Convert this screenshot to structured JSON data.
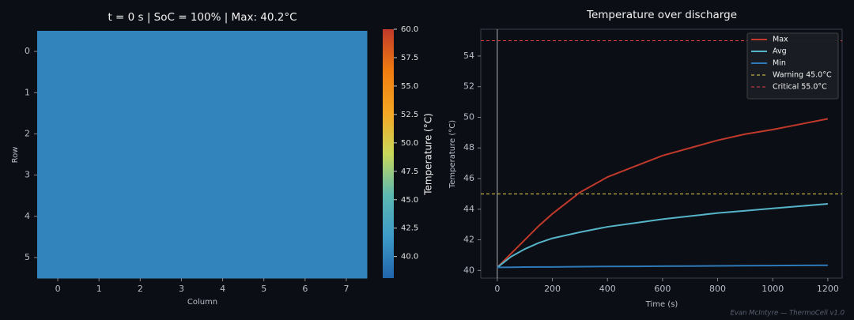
{
  "chart_data": [
    {
      "type": "heatmap",
      "title": "t = 0 s  |  SoC = 100%  |  Max: 40.2°C",
      "xlabel": "Column",
      "ylabel": "Row",
      "x_categories": [
        0,
        1,
        2,
        3,
        4,
        5,
        6,
        7
      ],
      "y_categories": [
        0,
        1,
        2,
        3,
        4,
        5
      ],
      "values": [
        [
          40.2,
          40.2,
          40.2,
          40.2,
          40.2,
          40.2,
          40.2,
          40.2
        ],
        [
          40.2,
          40.2,
          40.2,
          40.2,
          40.2,
          40.2,
          40.2,
          40.2
        ],
        [
          40.2,
          40.2,
          40.2,
          40.2,
          40.2,
          40.2,
          40.2,
          40.2
        ],
        [
          40.2,
          40.2,
          40.2,
          40.2,
          40.2,
          40.2,
          40.2,
          40.2
        ],
        [
          40.2,
          40.2,
          40.2,
          40.2,
          40.2,
          40.2,
          40.2,
          40.2
        ],
        [
          40.2,
          40.2,
          40.2,
          40.2,
          40.2,
          40.2,
          40.2,
          40.2
        ]
      ],
      "colorbar_label": "Temperature (°C)",
      "clim": [
        38.1,
        60
      ],
      "colormap": [
        "#2166ac",
        "#3d9ac8",
        "#5cb8b0",
        "#c8d85a",
        "#f5a623",
        "#f07c10",
        "#c0392b"
      ],
      "cticks": [
        {
          "value": 40,
          "label": "40.0"
        },
        {
          "value": 42.5,
          "label": "42.5"
        },
        {
          "value": 45,
          "label": "45.0"
        },
        {
          "value": 47.5,
          "label": "47.5"
        },
        {
          "value": 50,
          "label": "50.0"
        },
        {
          "value": 52.5,
          "label": "52.5"
        },
        {
          "value": 55,
          "label": "55.0"
        },
        {
          "value": 57.5,
          "label": "57.5"
        },
        {
          "value": 60,
          "label": "60.0"
        }
      ]
    },
    {
      "type": "line",
      "title": "Temperature over discharge",
      "xlabel": "Time (s)",
      "ylabel": "Temperature (°C)",
      "x": [
        0,
        50,
        100,
        150,
        200,
        300,
        400,
        500,
        600,
        700,
        800,
        900,
        1000,
        1100,
        1200
      ],
      "series": [
        {
          "name": "Max",
          "color": "#c0392b",
          "values": [
            40.2,
            41.1,
            42.0,
            42.9,
            43.7,
            45.1,
            46.1,
            46.8,
            47.5,
            48.0,
            48.5,
            48.9,
            49.2,
            49.55,
            49.9
          ]
        },
        {
          "name": "Avg",
          "color": "#56b4c8",
          "values": [
            40.2,
            40.9,
            41.4,
            41.8,
            42.1,
            42.5,
            42.85,
            43.1,
            43.35,
            43.55,
            43.75,
            43.9,
            44.05,
            44.2,
            44.35
          ]
        },
        {
          "name": "Min",
          "color": "#2e7ab8",
          "values": [
            40.2,
            40.21,
            40.22,
            40.23,
            40.23,
            40.25,
            40.26,
            40.27,
            40.28,
            40.29,
            40.3,
            40.31,
            40.32,
            40.33,
            40.34
          ]
        }
      ],
      "hlines": [
        {
          "name": "Warning 45.0°C",
          "value": 45,
          "color": "#e8d44d"
        },
        {
          "name": "Critical 55.0°C",
          "value": 55,
          "color": "#e04040"
        }
      ],
      "vline": 0,
      "xlim": [
        -60,
        1252
      ],
      "ylim": [
        39.5,
        55.75
      ],
      "xticks": [
        0,
        200,
        400,
        600,
        800,
        1000,
        1200
      ],
      "yticks": [
        40,
        42,
        44,
        46,
        48,
        50,
        52,
        54
      ],
      "legend": "upper right"
    }
  ],
  "footer": "Evan McIntyre — ThermoCell v1.0"
}
